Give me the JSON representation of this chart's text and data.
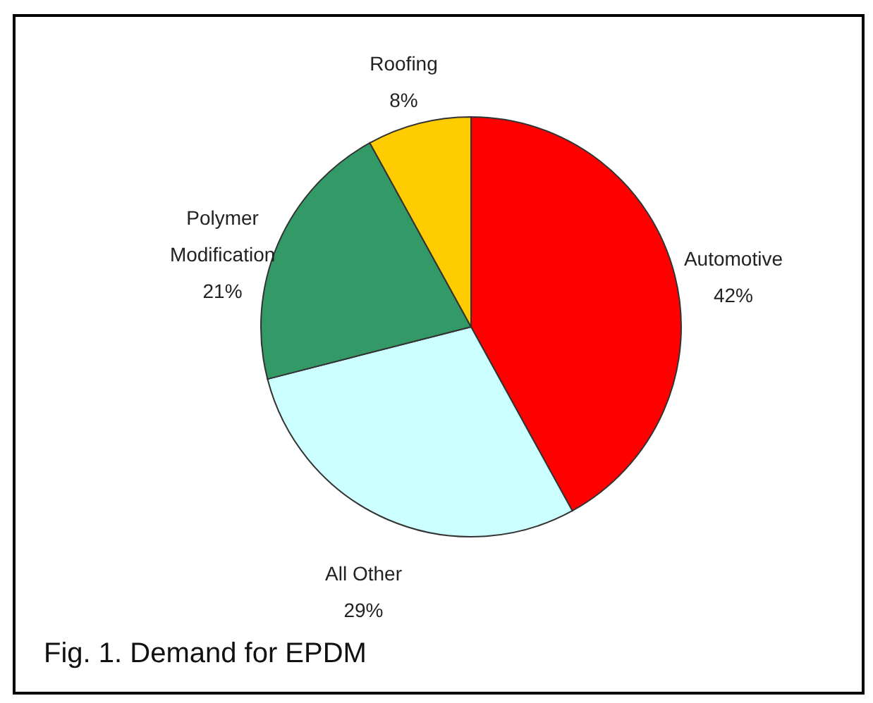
{
  "chart_data": {
    "type": "pie",
    "categories": [
      "Automotive",
      "All Other",
      "Polymer Modification",
      "Roofing"
    ],
    "values": [
      42,
      29,
      21,
      8
    ],
    "colors": [
      "#ff0000",
      "#ccffff",
      "#339966",
      "#ffcc00"
    ],
    "value_labels": [
      "42%",
      "29%",
      "21%",
      "8%"
    ],
    "annotations": [
      "Fig. 1. Demand for EPDM"
    ]
  }
}
